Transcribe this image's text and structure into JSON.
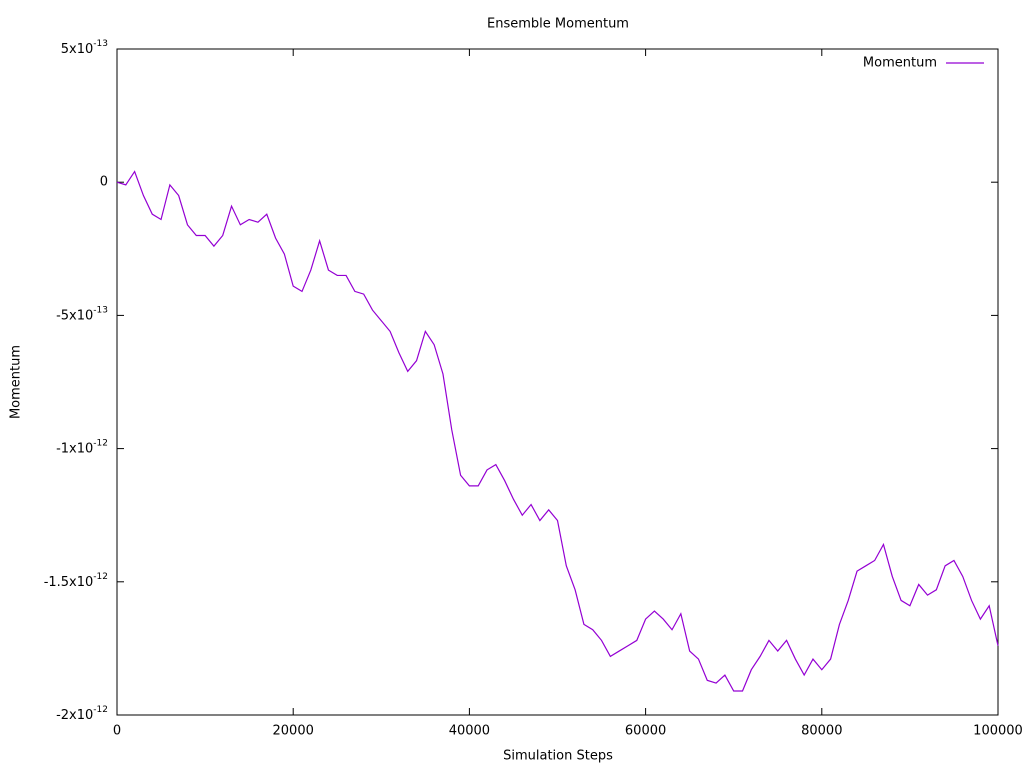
{
  "chart_data": {
    "type": "line",
    "title": "Ensemble Momentum",
    "x_label": "Simulation Steps",
    "y_label": "Momentum",
    "x": [
      0,
      1000,
      2000,
      3000,
      4000,
      5000,
      6000,
      7000,
      8000,
      9000,
      10000,
      11000,
      12000,
      13000,
      14000,
      15000,
      16000,
      17000,
      18000,
      19000,
      20000,
      21000,
      22000,
      23000,
      24000,
      25000,
      26000,
      27000,
      28000,
      29000,
      30000,
      31000,
      32000,
      33000,
      34000,
      35000,
      36000,
      37000,
      38000,
      39000,
      40000,
      41000,
      42000,
      43000,
      44000,
      45000,
      46000,
      47000,
      48000,
      49000,
      50000,
      51000,
      52000,
      53000,
      54000,
      55000,
      56000,
      57000,
      58000,
      59000,
      60000,
      61000,
      62000,
      63000,
      64000,
      65000,
      66000,
      67000,
      68000,
      69000,
      70000,
      71000,
      72000,
      73000,
      74000,
      75000,
      76000,
      77000,
      78000,
      79000,
      80000,
      81000,
      82000,
      83000,
      84000,
      85000,
      86000,
      87000,
      88000,
      89000,
      90000,
      91000,
      92000,
      93000,
      94000,
      95000,
      96000,
      97000,
      98000,
      99000,
      100000
    ],
    "series": [
      {
        "name": "Momentum",
        "color": "#9400d3",
        "values": [
          0,
          -1e-14,
          4e-14,
          -5e-14,
          -1.2e-13,
          -1.4e-13,
          -1e-14,
          -5e-14,
          -1.6e-13,
          -2e-13,
          -2e-13,
          -2.4e-13,
          -2e-13,
          -9e-14,
          -1.6e-13,
          -1.4e-13,
          -1.5e-13,
          -1.2e-13,
          -2.1e-13,
          -2.7e-13,
          -3.9e-13,
          -4.1e-13,
          -3.3e-13,
          -2.2e-13,
          -3.3e-13,
          -3.5e-13,
          -3.5e-13,
          -4.1e-13,
          -4.2e-13,
          -4.8e-13,
          -5.2e-13,
          -5.6e-13,
          -6.4e-13,
          -7.1e-13,
          -6.7e-13,
          -5.6e-13,
          -6.1e-13,
          -7.2e-13,
          -9.3e-13,
          -1.1e-12,
          -1.14e-12,
          -1.14e-12,
          -1.08e-12,
          -1.06e-12,
          -1.12e-12,
          -1.19e-12,
          -1.25e-12,
          -1.21e-12,
          -1.27e-12,
          -1.23e-12,
          -1.27e-12,
          -1.44e-12,
          -1.53e-12,
          -1.66e-12,
          -1.68e-12,
          -1.72e-12,
          -1.78e-12,
          -1.76e-12,
          -1.74e-12,
          -1.72e-12,
          -1.64e-12,
          -1.61e-12,
          -1.64e-12,
          -1.68e-12,
          -1.62e-12,
          -1.76e-12,
          -1.79e-12,
          -1.87e-12,
          -1.88e-12,
          -1.85e-12,
          -1.91e-12,
          -1.91e-12,
          -1.83e-12,
          -1.78e-12,
          -1.72e-12,
          -1.76e-12,
          -1.72e-12,
          -1.79e-12,
          -1.85e-12,
          -1.79e-12,
          -1.83e-12,
          -1.79e-12,
          -1.66e-12,
          -1.57e-12,
          -1.46e-12,
          -1.44e-12,
          -1.42e-12,
          -1.36e-12,
          -1.48e-12,
          -1.57e-12,
          -1.59e-12,
          -1.51e-12,
          -1.55e-12,
          -1.53e-12,
          -1.44e-12,
          -1.42e-12,
          -1.48e-12,
          -1.57e-12,
          -1.64e-12,
          -1.59e-12,
          -1.74e-12
        ]
      }
    ],
    "xlim": [
      0,
      100000
    ],
    "xticks": [
      0,
      20000,
      40000,
      60000,
      80000,
      100000
    ],
    "ylim": [
      -2e-12,
      5e-13
    ],
    "yticks": [
      {
        "value": -2e-12,
        "label": "-2x10",
        "exponent": "-12"
      },
      {
        "value": -1.5e-12,
        "label": "-1.5x10",
        "exponent": "-12"
      },
      {
        "value": -1e-12,
        "label": "-1x10",
        "exponent": "-12"
      },
      {
        "value": -5e-13,
        "label": "-5x10",
        "exponent": "-13"
      },
      0,
      {
        "value": 5e-13,
        "label": "5x10",
        "exponent": "-13"
      }
    ],
    "legend": "top-right",
    "grid": false
  }
}
